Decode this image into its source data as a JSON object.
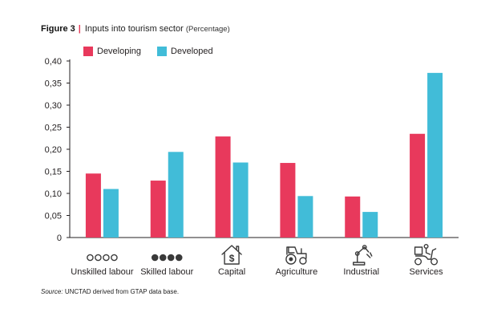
{
  "figure": {
    "label": "Figure 3",
    "title": "Inputs into tourism sector",
    "subtitle": "(Percentage)"
  },
  "source": {
    "label": "Source:",
    "text": "UNCTAD derived from GTAP data base."
  },
  "colors": {
    "developing": "#e8395c",
    "developed": "#41bcd8",
    "axis": "#231f20",
    "icon": "#3a3a3a"
  },
  "chart_data": {
    "type": "bar",
    "categories": [
      "Unskilled labour",
      "Skilled labour",
      "Capital",
      "Agriculture",
      "Industrial",
      "Services"
    ],
    "category_icons": [
      "four-empty-circles-icon",
      "four-filled-circles-icon",
      "house-dollar-icon",
      "tractor-icon",
      "robot-arm-icon",
      "scooter-delivery-icon"
    ],
    "series": [
      {
        "name": "Developing",
        "values": [
          0.145,
          0.129,
          0.229,
          0.169,
          0.093,
          0.235
        ]
      },
      {
        "name": "Developed",
        "values": [
          0.11,
          0.194,
          0.17,
          0.094,
          0.058,
          0.373
        ]
      }
    ],
    "ylim": [
      0,
      0.4
    ],
    "yticks": [
      0,
      0.05,
      0.1,
      0.15,
      0.2,
      0.25,
      0.3,
      0.35,
      0.4
    ],
    "ytick_labels": [
      "0",
      "0,05",
      "0,10",
      "0,15",
      "0,20",
      "0,25",
      "0,30",
      "0,35",
      "0,40"
    ],
    "grid": false,
    "legend_position": "top-left"
  }
}
